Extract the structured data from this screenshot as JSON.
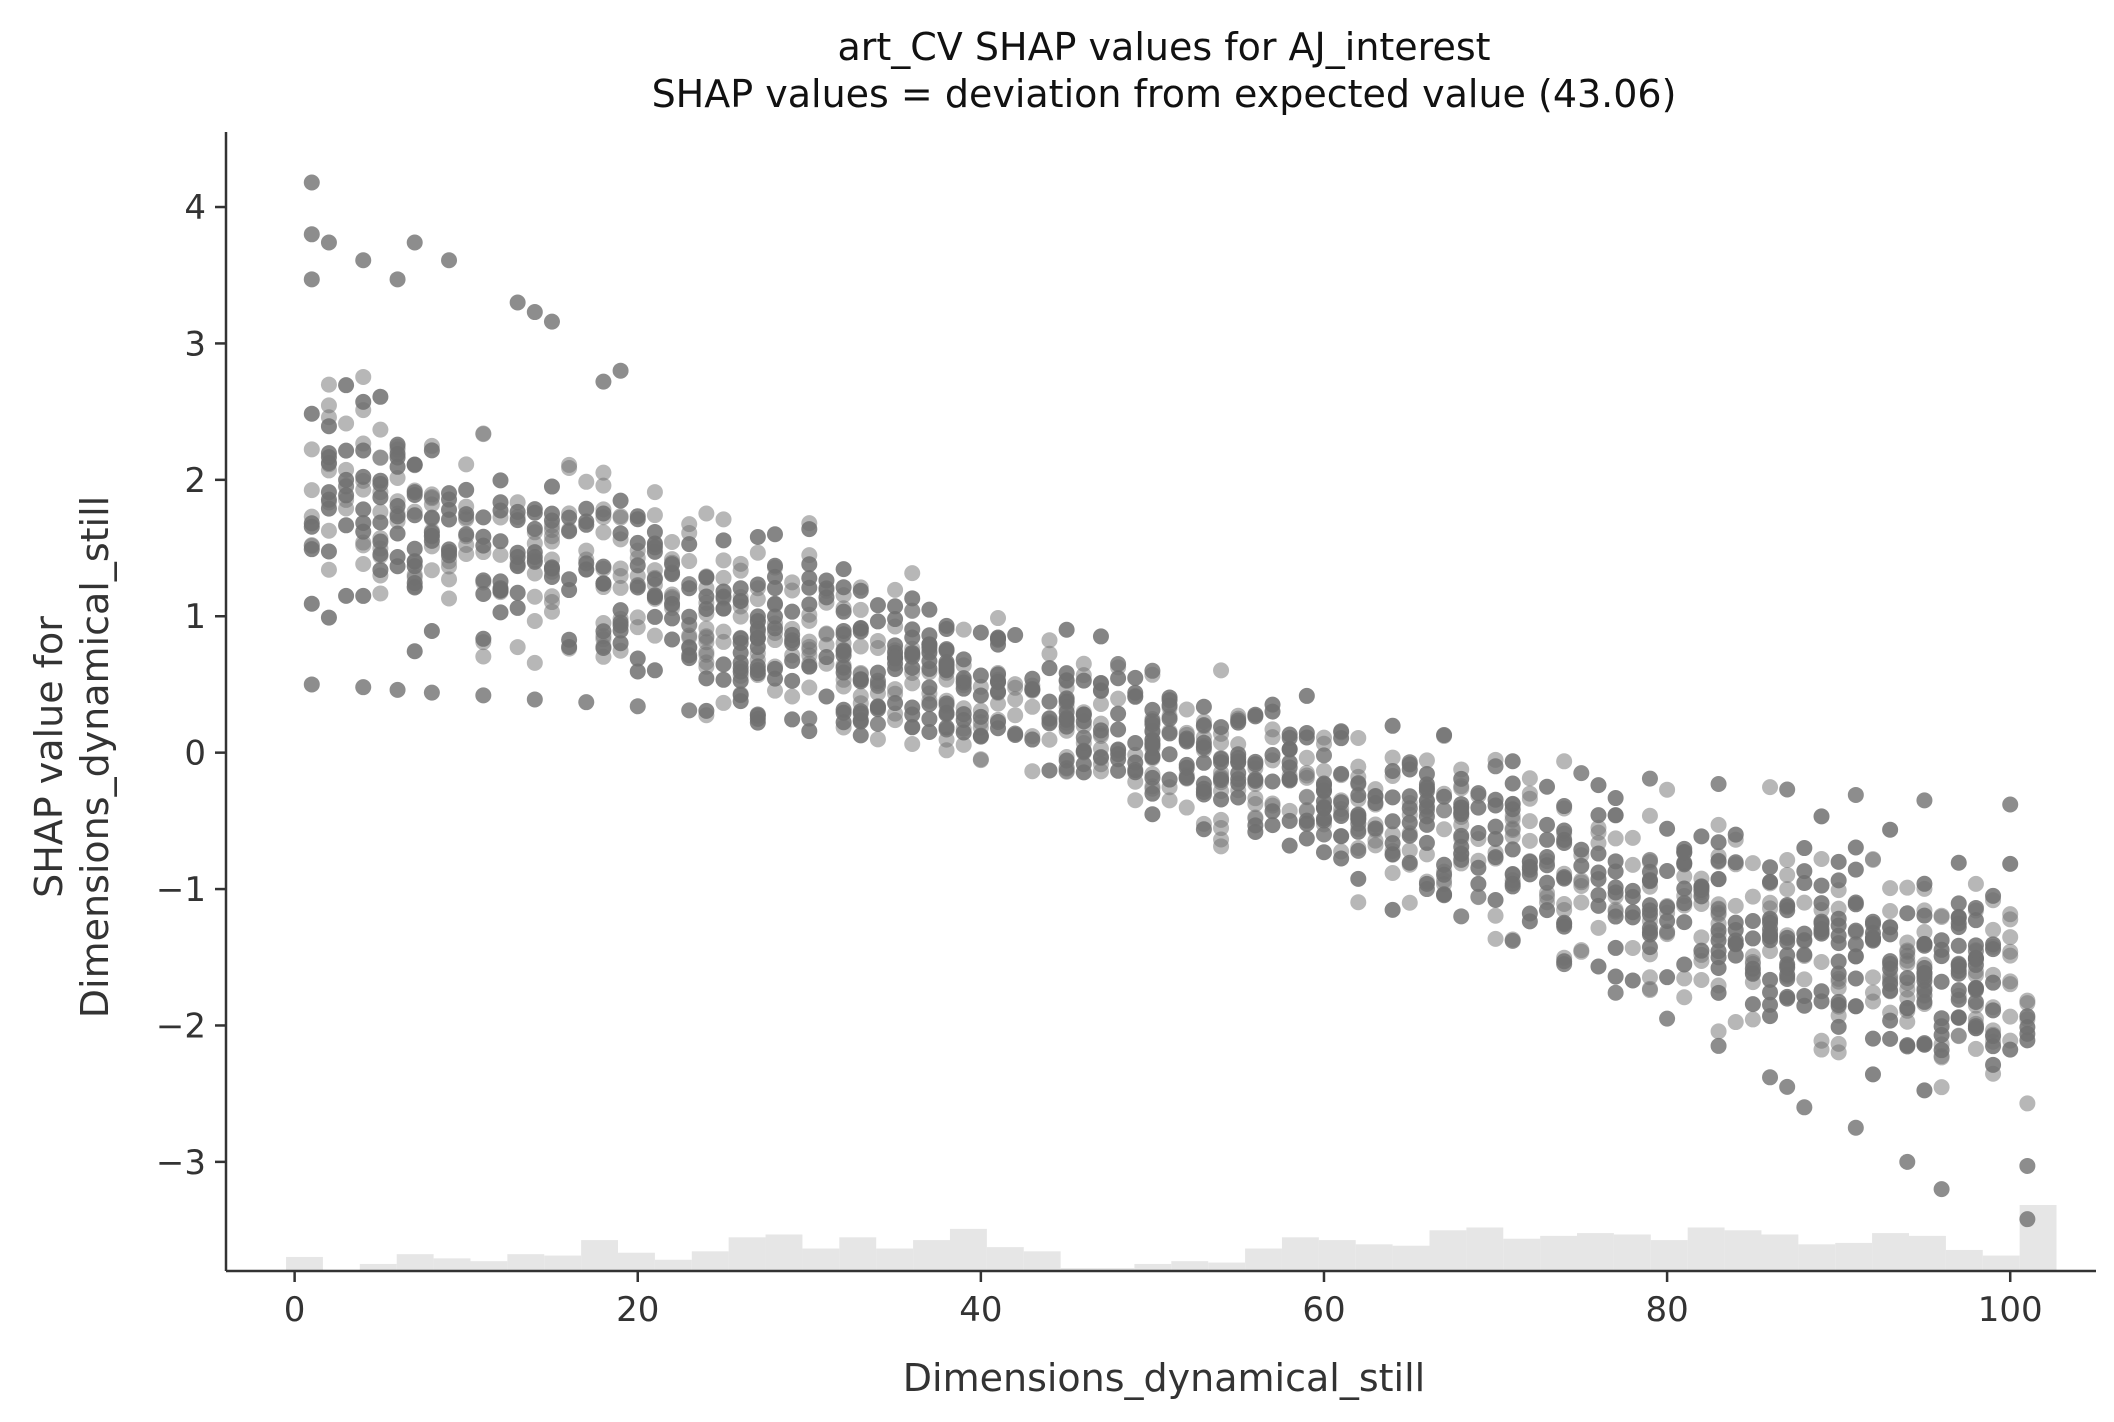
{
  "chart_data": {
    "type": "scatter",
    "title": "art_CV SHAP values for AJ_interest",
    "subtitle": "SHAP values = deviation from expected value (43.06)",
    "xlabel": "Dimensions_dynamical_still",
    "ylabel_line1": "SHAP value for",
    "ylabel_line2": "Dimensions_dynamical_still",
    "xlim": [
      -4,
      105
    ],
    "ylim": [
      -3.8,
      4.55
    ],
    "x_ticks": [
      0,
      20,
      40,
      60,
      80,
      100
    ],
    "x_tick_labels": [
      "0",
      "20",
      "40",
      "60",
      "80",
      "100"
    ],
    "y_ticks": [
      -3,
      -2,
      -1,
      0,
      1,
      2,
      3,
      4
    ],
    "y_tick_labels": [
      "−3",
      "−2",
      "−1",
      "0",
      "1",
      "2",
      "3",
      "4"
    ],
    "grid": false,
    "point_color": "#707070",
    "histogram_color": "#e6e6e6",
    "trend_description": "SHAP decreases roughly linearly from about +2 at x=0 to about -1.8 at x=100, crossing 0 near x=50",
    "highlighted_points": [
      {
        "x": 1,
        "y": 4.18
      },
      {
        "x": 1,
        "y": 3.8
      },
      {
        "x": 1,
        "y": 3.47
      },
      {
        "x": 2,
        "y": 3.74
      },
      {
        "x": 4,
        "y": 3.61
      },
      {
        "x": 6,
        "y": 3.47
      },
      {
        "x": 7,
        "y": 3.74
      },
      {
        "x": 9,
        "y": 3.61
      },
      {
        "x": 13,
        "y": 3.3
      },
      {
        "x": 14,
        "y": 3.23
      },
      {
        "x": 15,
        "y": 3.16
      },
      {
        "x": 19,
        "y": 2.8
      },
      {
        "x": 18,
        "y": 2.72
      },
      {
        "x": 1,
        "y": 0.5
      },
      {
        "x": 4,
        "y": 0.48
      },
      {
        "x": 6,
        "y": 0.46
      },
      {
        "x": 8,
        "y": 0.44
      },
      {
        "x": 11,
        "y": 0.42
      },
      {
        "x": 14,
        "y": 0.39
      },
      {
        "x": 17,
        "y": 0.37
      },
      {
        "x": 20,
        "y": 0.34
      },
      {
        "x": 23,
        "y": 0.31
      },
      {
        "x": 27,
        "y": 0.28
      },
      {
        "x": 30,
        "y": 0.25
      },
      {
        "x": 34,
        "y": 0.21
      },
      {
        "x": 38,
        "y": 0.17
      },
      {
        "x": 42,
        "y": 0.14
      },
      {
        "x": 46,
        "y": 0.11
      },
      {
        "x": 50,
        "y": 0.6
      },
      {
        "x": 48,
        "y": 0.65
      },
      {
        "x": 60,
        "y": -0.02
      },
      {
        "x": 65,
        "y": -0.07
      },
      {
        "x": 70,
        "y": -0.1
      },
      {
        "x": 75,
        "y": -0.15
      },
      {
        "x": 79,
        "y": -0.19
      },
      {
        "x": 83,
        "y": -0.23
      },
      {
        "x": 87,
        "y": -0.27
      },
      {
        "x": 91,
        "y": -0.31
      },
      {
        "x": 95,
        "y": -0.35
      },
      {
        "x": 100,
        "y": -0.38
      },
      {
        "x": 60,
        "y": -0.6
      },
      {
        "x": 62,
        "y": -0.72
      },
      {
        "x": 66,
        "y": -1.0
      },
      {
        "x": 68,
        "y": -1.2
      },
      {
        "x": 71,
        "y": -1.38
      },
      {
        "x": 74,
        "y": -1.55
      },
      {
        "x": 77,
        "y": -1.76
      },
      {
        "x": 80,
        "y": -1.95
      },
      {
        "x": 83,
        "y": -2.15
      },
      {
        "x": 86,
        "y": -2.38
      },
      {
        "x": 87,
        "y": -2.45
      },
      {
        "x": 88,
        "y": -2.6
      },
      {
        "x": 91,
        "y": -2.75
      },
      {
        "x": 94,
        "y": -3.0
      },
      {
        "x": 96,
        "y": -3.2
      },
      {
        "x": 101,
        "y": -3.03
      },
      {
        "x": 101,
        "y": -3.42
      }
    ],
    "histogram": {
      "x_start": -0.5,
      "bin_width": 2.15,
      "counts": [
        10,
        0,
        5,
        12,
        9,
        7,
        12,
        11,
        22,
        13,
        8,
        14,
        24,
        26,
        16,
        24,
        16,
        22,
        30,
        17,
        14,
        2,
        2,
        5,
        7,
        6,
        16,
        24,
        22,
        19,
        18,
        29,
        31,
        23,
        25,
        27,
        26,
        22,
        31,
        29,
        26,
        19,
        20,
        27,
        25,
        15,
        11,
        47
      ]
    }
  }
}
